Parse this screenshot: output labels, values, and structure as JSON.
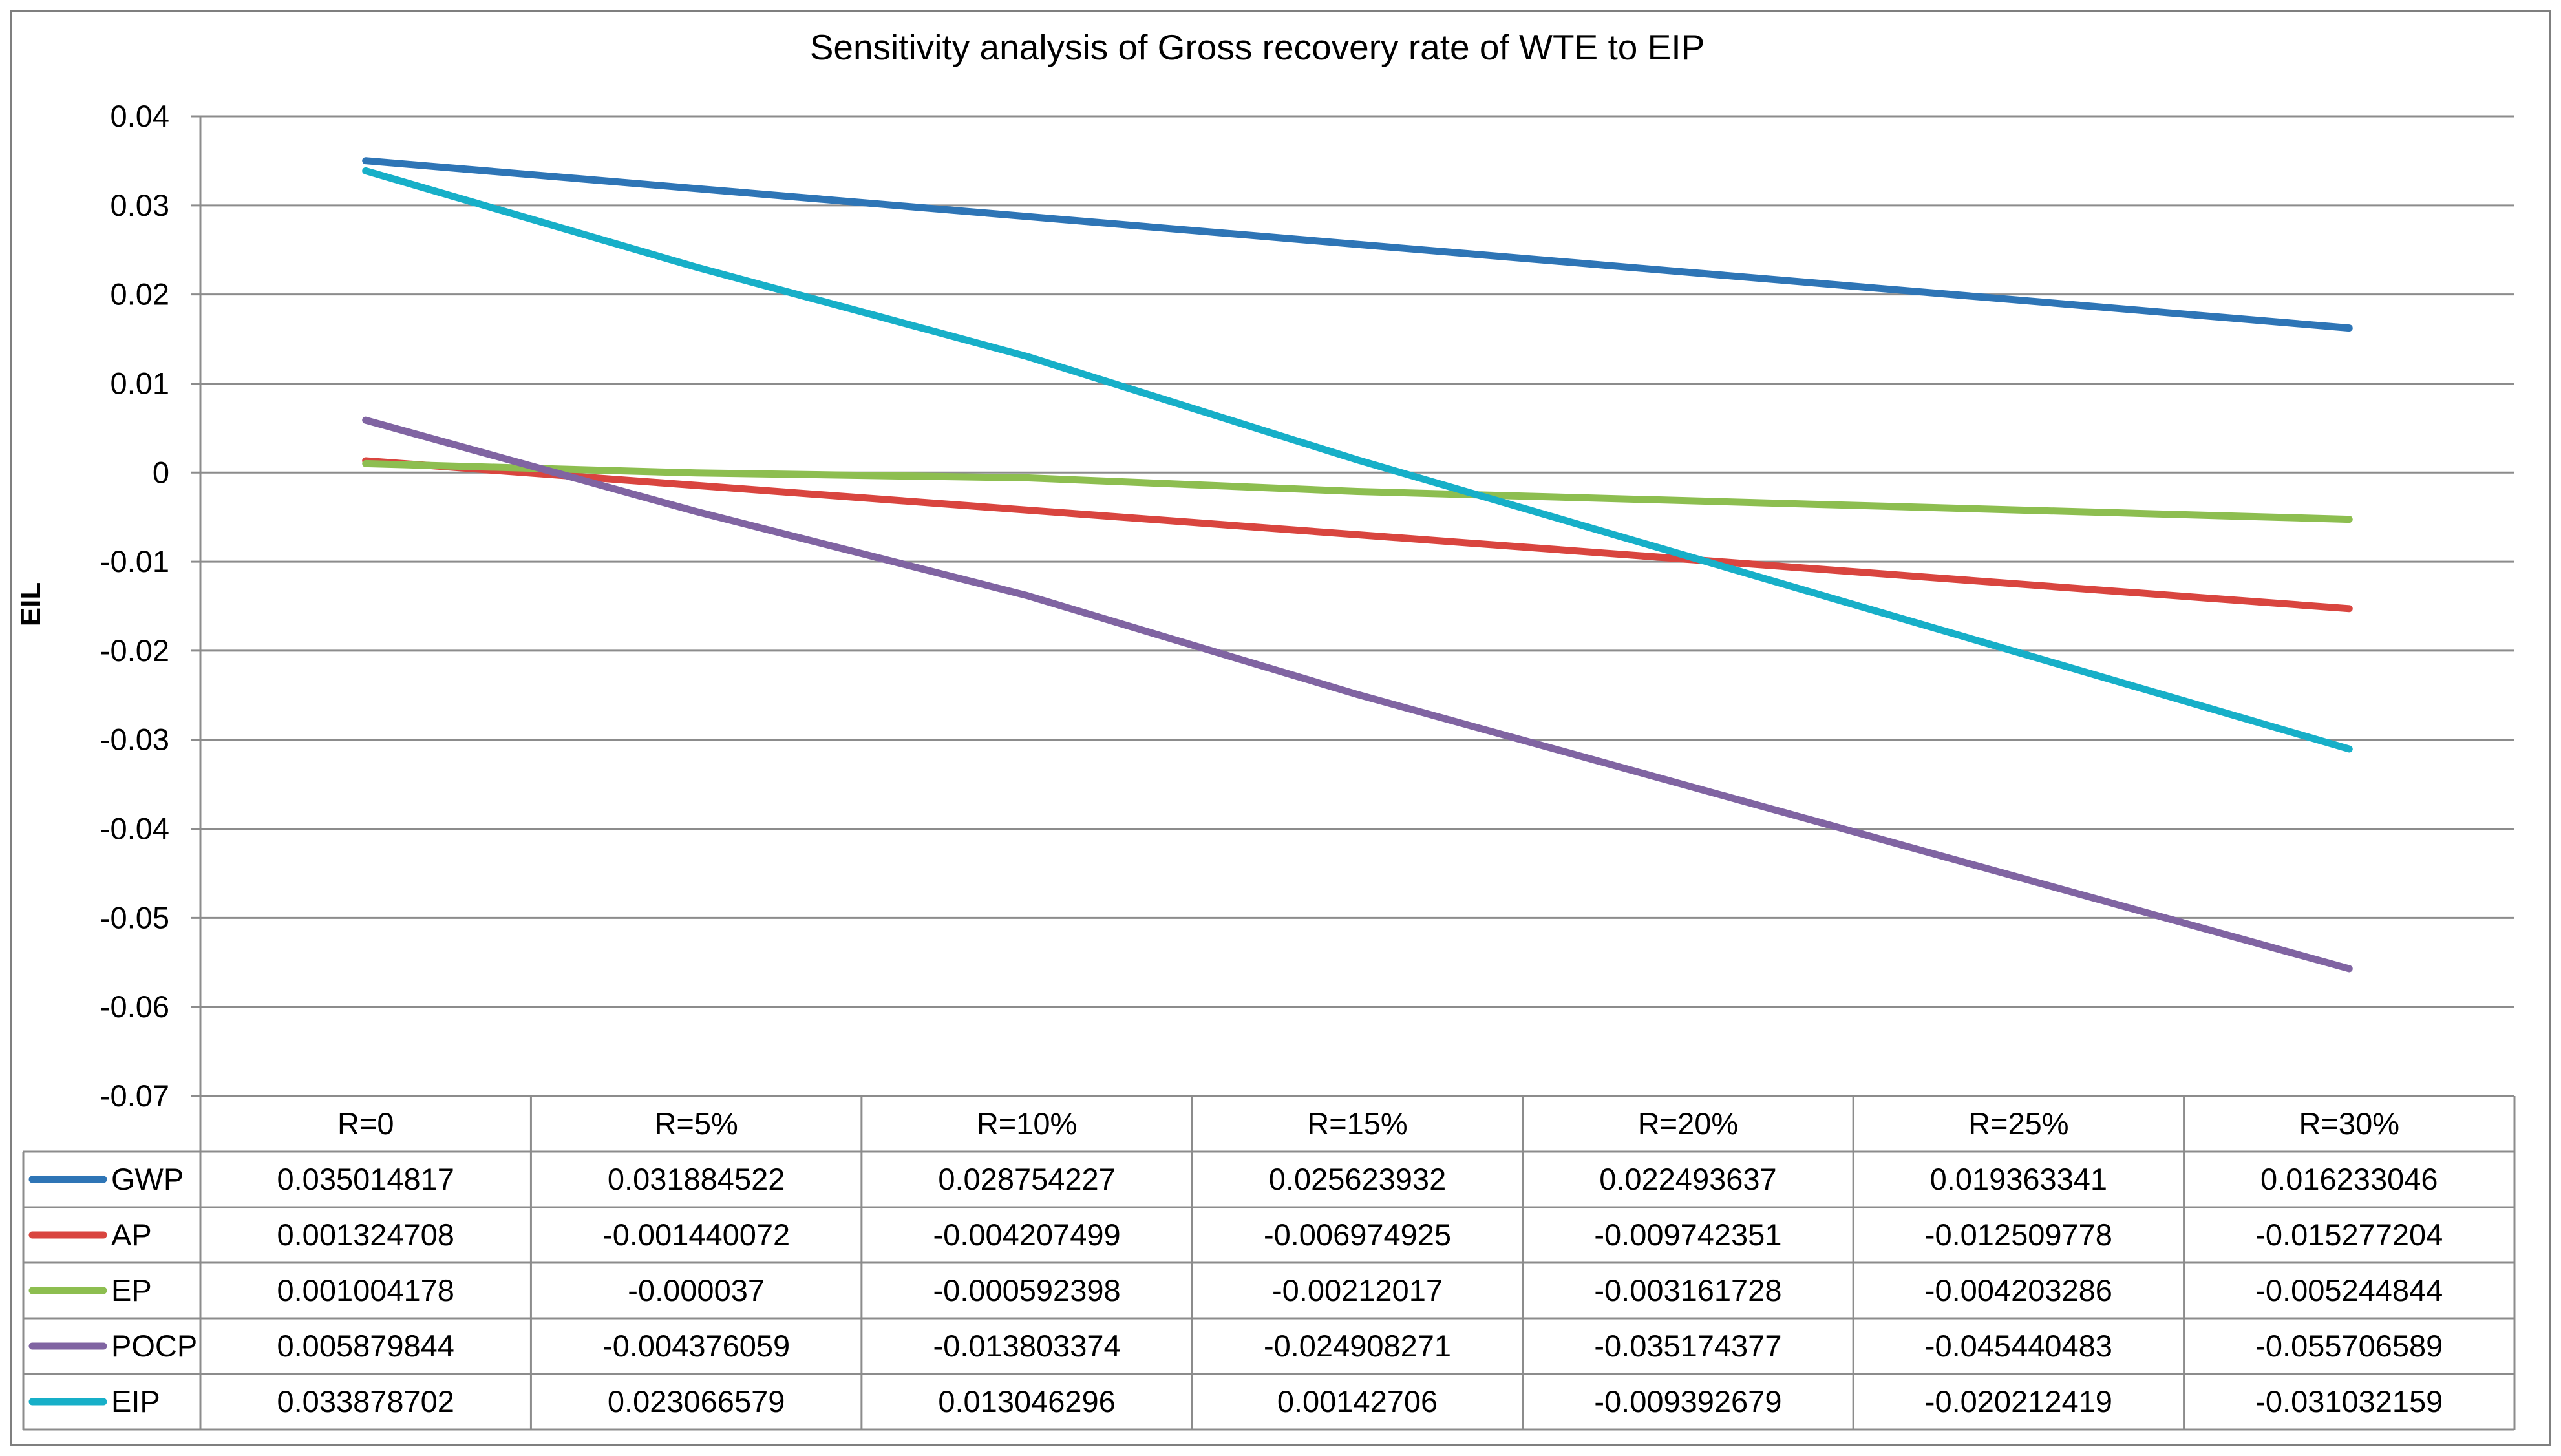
{
  "chart_data": {
    "type": "line",
    "title": "Sensitivity analysis of Gross recovery rate of WTE to EIP",
    "xlabel": "",
    "ylabel": "EIL",
    "ylim": [
      -0.07,
      0.04
    ],
    "ytick_step": 0.01,
    "yticks": [
      "0.04",
      "0.03",
      "0.02",
      "0.01",
      "0",
      "-0.01",
      "-0.02",
      "-0.03",
      "-0.04",
      "-0.05",
      "-0.06",
      "-0.07"
    ],
    "grid": true,
    "legend": "data-table-below",
    "categories": [
      "R=0",
      "R=5%",
      "R=10%",
      "R=15%",
      "R=20%",
      "R=25%",
      "R=30%"
    ],
    "series": [
      {
        "name": "GWP",
        "color": "#2E75B6",
        "values": [
          0.035014817,
          0.031884522,
          0.028754227,
          0.025623932,
          0.022493637,
          0.019363341,
          0.016233046
        ],
        "labels": [
          "0.035014817",
          "0.031884522",
          "0.028754227",
          "0.025623932",
          "0.022493637",
          "0.019363341",
          "0.016233046"
        ]
      },
      {
        "name": "AP",
        "color": "#D9453F",
        "values": [
          0.001324708,
          -0.001440072,
          -0.004207499,
          -0.006974925,
          -0.009742351,
          -0.012509778,
          -0.015277204
        ],
        "labels": [
          "0.001324708",
          "-0.001440072",
          "-0.004207499",
          "-0.006974925",
          "-0.009742351",
          "-0.012509778",
          "-0.015277204"
        ]
      },
      {
        "name": "EP",
        "color": "#8DBE50",
        "values": [
          0.001004178,
          -3.7e-05,
          -0.000592398,
          -0.00212017,
          -0.003161728,
          -0.004203286,
          -0.005244844
        ],
        "labels": [
          "0.001004178",
          "-0.000037",
          "-0.000592398",
          "-0.00212017",
          "-0.003161728",
          "-0.004203286",
          "-0.005244844"
        ]
      },
      {
        "name": "POCP",
        "color": "#8064A2",
        "values": [
          0.005879844,
          -0.004376059,
          -0.013803374,
          -0.024908271,
          -0.035174377,
          -0.045440483,
          -0.055706589
        ],
        "labels": [
          "0.005879844",
          "-0.004376059",
          "-0.013803374",
          "-0.024908271",
          "-0.035174377",
          "-0.045440483",
          "-0.055706589"
        ]
      },
      {
        "name": "EIP",
        "color": "#17AFC8",
        "values": [
          0.033878702,
          0.023066579,
          0.013046296,
          0.00142706,
          -0.009392679,
          -0.020212419,
          -0.031032159
        ],
        "labels": [
          "0.033878702",
          "0.023066579",
          "0.013046296",
          "0.00142706",
          "-0.009392679",
          "-0.020212419",
          "-0.031032159"
        ]
      }
    ]
  }
}
